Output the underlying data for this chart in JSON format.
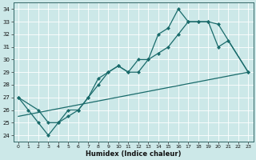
{
  "xlabel": "Humidex (Indice chaleur)",
  "xlim": [
    -0.5,
    23.5
  ],
  "ylim": [
    23.5,
    34.5
  ],
  "xticks": [
    0,
    1,
    2,
    3,
    4,
    5,
    6,
    7,
    8,
    9,
    10,
    11,
    12,
    13,
    14,
    15,
    16,
    17,
    18,
    19,
    20,
    21,
    22,
    23
  ],
  "yticks": [
    24,
    25,
    26,
    27,
    28,
    29,
    30,
    31,
    32,
    33,
    34
  ],
  "bg_color": "#cce8e8",
  "line_color": "#1a6b6b",
  "grid_color": "#ffffff",
  "line1_x": [
    0,
    1,
    2,
    3,
    4,
    5,
    6,
    7,
    8,
    9,
    10,
    11,
    12,
    13,
    14,
    15,
    16,
    17,
    18,
    19,
    20,
    21,
    23
  ],
  "line1_y": [
    27,
    26,
    25,
    24,
    25,
    26,
    26,
    27,
    28,
    29,
    29.5,
    29,
    30,
    30,
    32,
    32.5,
    34,
    33,
    33,
    33,
    31,
    31.5,
    29
  ],
  "line2_x": [
    0,
    2,
    3,
    4,
    5,
    6,
    7,
    8,
    9,
    10,
    11,
    12,
    13,
    14,
    15,
    16,
    17,
    18,
    19,
    20,
    23
  ],
  "line2_y": [
    27,
    26,
    25,
    25,
    25.5,
    26,
    27,
    28.5,
    29,
    29.5,
    29,
    29,
    30,
    30.5,
    31,
    32,
    33,
    33,
    33,
    32.8,
    29
  ],
  "line3_x": [
    0,
    23
  ],
  "line3_y": [
    25.5,
    29
  ],
  "markersize": 2.5,
  "linewidth": 0.9
}
